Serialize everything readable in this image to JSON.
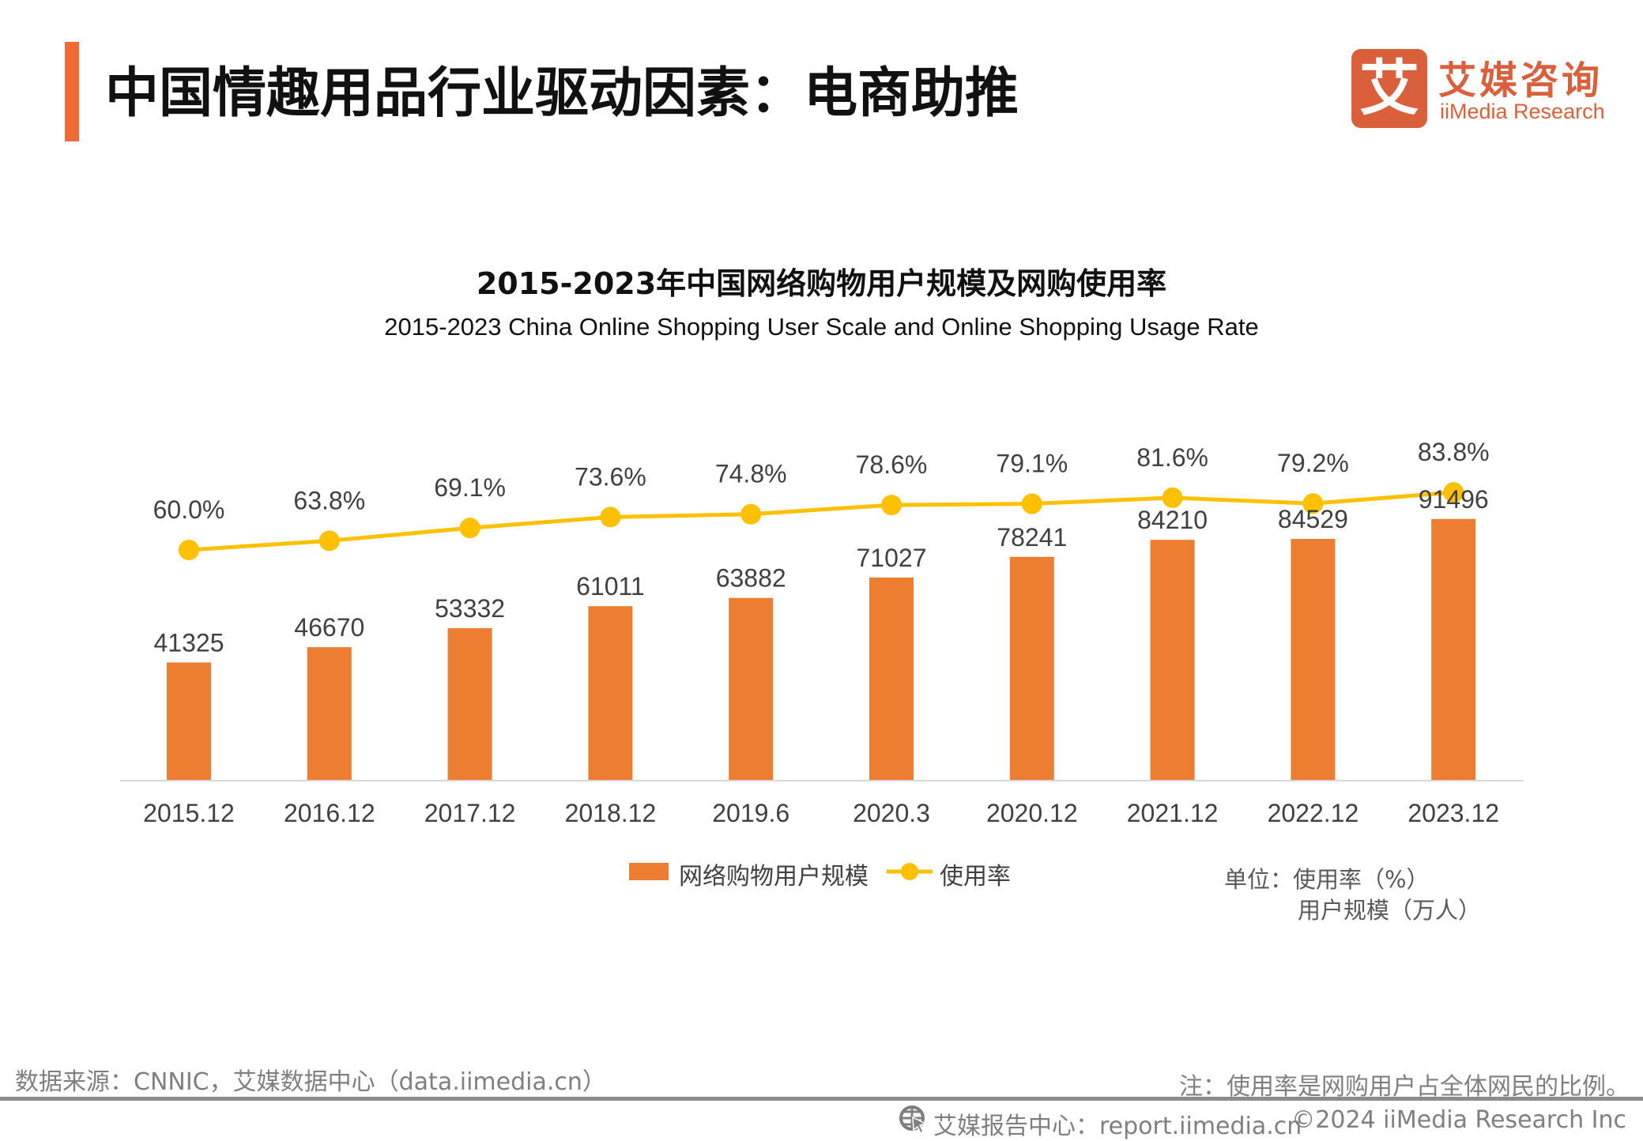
{
  "header": {
    "title": "中国情趣用品行业驱动因素：电商助推",
    "accent_color": "#F06A35"
  },
  "logo": {
    "mark": "艾",
    "name_cn": "艾媒咨询",
    "name_en": "iiMedia Research",
    "color": "#D9603B"
  },
  "chart_data": {
    "type": "bar+line",
    "title": "2015-2023年中国网络购物用户规模及网购使用率",
    "subtitle": "2015-2023 China Online Shopping User Scale and Online Shopping Usage Rate",
    "categories": [
      "2015.12",
      "2016.12",
      "2017.12",
      "2018.12",
      "2019.6",
      "2020.3",
      "2020.12",
      "2021.12",
      "2022.12",
      "2023.12"
    ],
    "series": [
      {
        "name": "网络购物用户规模",
        "type": "bar",
        "color": "#ED7D31",
        "values": [
          41325,
          46670,
          53332,
          61011,
          63882,
          71027,
          78241,
          84210,
          84529,
          91496
        ]
      },
      {
        "name": "使用率",
        "type": "line",
        "color": "#FFC000",
        "values": [
          60.0,
          63.8,
          69.1,
          73.6,
          74.8,
          78.6,
          79.1,
          81.6,
          79.2,
          83.8
        ],
        "labels": [
          "60.0%",
          "63.8%",
          "69.1%",
          "73.6%",
          "74.8%",
          "78.6%",
          "79.1%",
          "81.6%",
          "79.2%",
          "83.8%"
        ]
      }
    ],
    "ylim": [
      0,
      100000
    ],
    "grid": false,
    "legend_position": "bottom",
    "units": {
      "line1": "单位：使用率（%）",
      "line2": "用户规模（万人）"
    }
  },
  "footer": {
    "source": "数据来源：CNNIC，艾媒数据中心（data.iimedia.cn）",
    "note": "注：使用率是网购用户占全体网民的比例。",
    "report_site": "艾媒报告中心：report.iimedia.cn",
    "copyright": "©2024  iiMedia Research Inc",
    "icon": "globe-cursor-icon"
  }
}
